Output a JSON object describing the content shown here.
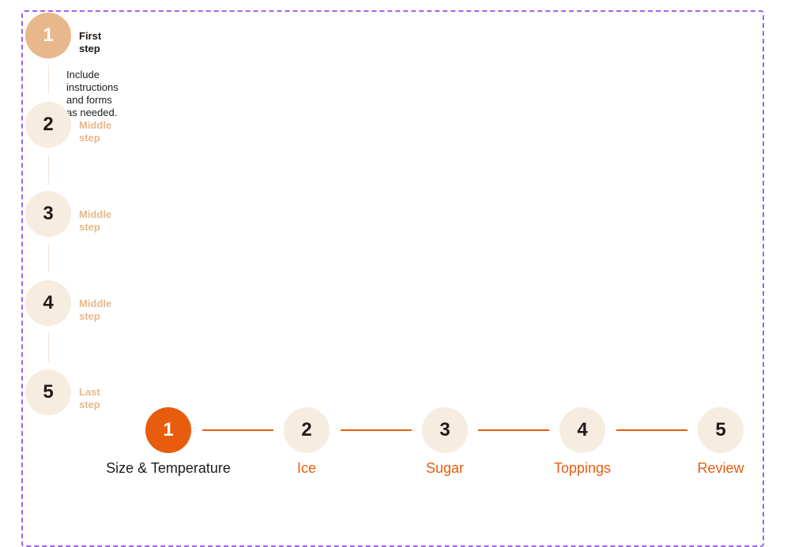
{
  "vertical_stepper": {
    "steps": [
      {
        "number": "1",
        "title": "First step",
        "description": "Include instructions and forms as needed.",
        "state": "active"
      },
      {
        "number": "2",
        "title": "Middle step",
        "state": "inactive"
      },
      {
        "number": "3",
        "title": "Middle step",
        "state": "inactive"
      },
      {
        "number": "4",
        "title": "Middle step",
        "state": "inactive"
      },
      {
        "number": "5",
        "title": "Last step",
        "state": "inactive"
      }
    ]
  },
  "horizontal_stepper": {
    "steps": [
      {
        "number": "1",
        "label": "Size & Temperature",
        "state": "active"
      },
      {
        "number": "2",
        "label": "Ice",
        "state": "inactive"
      },
      {
        "number": "3",
        "label": "Sugar",
        "state": "inactive"
      },
      {
        "number": "4",
        "label": "Toppings",
        "state": "inactive"
      },
      {
        "number": "5",
        "label": "Review",
        "state": "inactive"
      }
    ]
  },
  "colors": {
    "frame_border": "#9d62ec",
    "accent_orange": "#e85c0d",
    "muted_peach": "#e8b88c",
    "circle_bg": "#f6ece0",
    "text_dark": "#1f1b18"
  }
}
